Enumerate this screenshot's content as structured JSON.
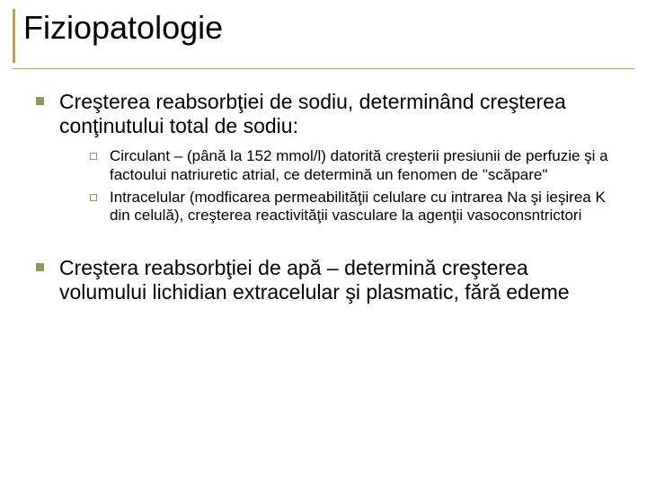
{
  "accent_color": "#b8a050",
  "bullet_color": "#8a9a5b",
  "background_color": "#ffffff",
  "text_color": "#000000",
  "title": "Fiziopatologie",
  "title_fontsize": 36,
  "l1_fontsize": 23,
  "l2_fontsize": 17,
  "items": [
    {
      "text": "Creşterea reabsorbţiei de sodiu, determinând creşterea conţinutului total de sodiu:",
      "sub": [
        "Circulant – (până la 152 mmol/l) datorită creşterii presiunii de perfuzie şi a factoului natriuretic atrial, ce determină un fenomen de \"scăpare\"",
        "Intracelular (modficarea permeabilităţii celulare cu intrarea Na şi ieşirea K din celulă), creşterea reactivităţii vasculare la agenţii vasoconsntrictori"
      ]
    },
    {
      "text": "Creştera reabsorbţiei de apă – determină creşterea volumului lichidian extracelular şi plasmatic, fără edeme",
      "sub": []
    }
  ]
}
